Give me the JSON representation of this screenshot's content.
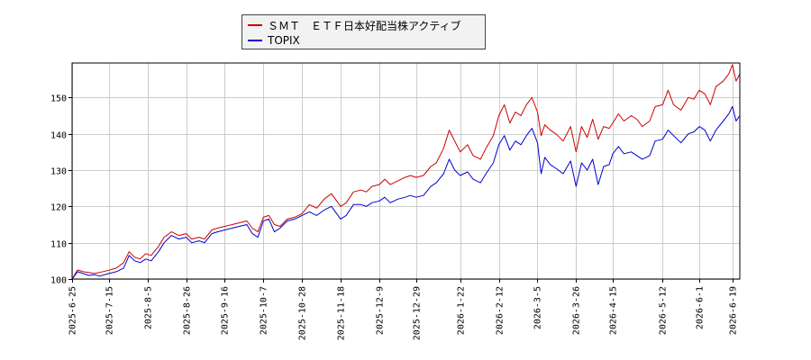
{
  "chart_data": {
    "type": "line",
    "title": "",
    "xlabel": "",
    "ylabel": "",
    "ylim": [
      100,
      159.5
    ],
    "yticks": [
      100,
      110,
      120,
      130,
      140,
      150
    ],
    "xlim": [
      "2025-06-25",
      "2026-06-23"
    ],
    "xticks": [
      "2025-6-25",
      "2025-7-15",
      "2025-8-5",
      "2025-8-26",
      "2025-9-16",
      "2025-10-7",
      "2025-10-28",
      "2025-11-18",
      "2025-12-9",
      "2025-12-29",
      "2026-1-22",
      "2026-2-12",
      "2026-3-5",
      "2026-3-26",
      "2026-4-15",
      "2026-5-12",
      "2026-6-1",
      "2026-6-19"
    ],
    "grid": true,
    "legend_position": "top",
    "series": [
      {
        "name": "ＳＭＴ　ＥＴＦ日本好配当株アクティブ",
        "color": "#cc0000",
        "points": [
          [
            "2025-06-25",
            100.0
          ],
          [
            "2025-06-28",
            102.5
          ],
          [
            "2025-07-01",
            102.0
          ],
          [
            "2025-07-04",
            101.8
          ],
          [
            "2025-07-07",
            101.5
          ],
          [
            "2025-07-10",
            101.8
          ],
          [
            "2025-07-15",
            102.4
          ],
          [
            "2025-07-19",
            103.0
          ],
          [
            "2025-07-23",
            104.5
          ],
          [
            "2025-07-26",
            107.5
          ],
          [
            "2025-07-29",
            106.0
          ],
          [
            "2025-08-01",
            105.5
          ],
          [
            "2025-08-04",
            107.0
          ],
          [
            "2025-08-07",
            106.5
          ],
          [
            "2025-08-11",
            109.0
          ],
          [
            "2025-08-14",
            111.5
          ],
          [
            "2025-08-18",
            113.0
          ],
          [
            "2025-08-22",
            112.0
          ],
          [
            "2025-08-26",
            112.5
          ],
          [
            "2025-08-29",
            111.0
          ],
          [
            "2025-09-02",
            111.5
          ],
          [
            "2025-09-05",
            111.0
          ],
          [
            "2025-09-09",
            113.5
          ],
          [
            "2025-09-12",
            114.0
          ],
          [
            "2025-09-16",
            114.5
          ],
          [
            "2025-09-20",
            115.0
          ],
          [
            "2025-09-24",
            115.5
          ],
          [
            "2025-09-28",
            116.0
          ],
          [
            "2025-10-01",
            114.0
          ],
          [
            "2025-10-04",
            113.0
          ],
          [
            "2025-10-07",
            117.0
          ],
          [
            "2025-10-10",
            117.5
          ],
          [
            "2025-10-13",
            115.0
          ],
          [
            "2025-10-16",
            114.5
          ],
          [
            "2025-10-20",
            116.5
          ],
          [
            "2025-10-24",
            117.0
          ],
          [
            "2025-10-28",
            118.0
          ],
          [
            "2025-11-01",
            120.5
          ],
          [
            "2025-11-05",
            119.5
          ],
          [
            "2025-11-09",
            122.0
          ],
          [
            "2025-11-13",
            123.5
          ],
          [
            "2025-11-18",
            120.0
          ],
          [
            "2025-11-21",
            121.0
          ],
          [
            "2025-11-25",
            124.0
          ],
          [
            "2025-11-29",
            124.5
          ],
          [
            "2025-12-02",
            124.0
          ],
          [
            "2025-12-05",
            125.5
          ],
          [
            "2025-12-09",
            126.0
          ],
          [
            "2025-12-12",
            127.5
          ],
          [
            "2025-12-15",
            126.0
          ],
          [
            "2025-12-19",
            127.0
          ],
          [
            "2025-12-23",
            128.0
          ],
          [
            "2025-12-26",
            128.5
          ],
          [
            "2025-12-29",
            128.0
          ],
          [
            "2026-01-02",
            128.5
          ],
          [
            "2026-01-06",
            131.0
          ],
          [
            "2026-01-09",
            132.0
          ],
          [
            "2026-01-13",
            136.0
          ],
          [
            "2026-01-16",
            141.0
          ],
          [
            "2026-01-19",
            138.0
          ],
          [
            "2026-01-22",
            135.0
          ],
          [
            "2026-01-26",
            137.0
          ],
          [
            "2026-01-29",
            134.0
          ],
          [
            "2026-02-02",
            133.0
          ],
          [
            "2026-02-05",
            136.0
          ],
          [
            "2026-02-09",
            139.5
          ],
          [
            "2026-02-12",
            145.0
          ],
          [
            "2026-02-15",
            148.0
          ],
          [
            "2026-02-18",
            143.0
          ],
          [
            "2026-02-21",
            146.0
          ],
          [
            "2026-02-24",
            145.0
          ],
          [
            "2026-02-27",
            148.0
          ],
          [
            "2026-03-02",
            150.0
          ],
          [
            "2026-03-05",
            146.0
          ],
          [
            "2026-03-07",
            139.5
          ],
          [
            "2026-03-09",
            142.5
          ],
          [
            "2026-03-12",
            141.0
          ],
          [
            "2026-03-15",
            140.0
          ],
          [
            "2026-03-19",
            138.0
          ],
          [
            "2026-03-23",
            142.0
          ],
          [
            "2026-03-26",
            135.0
          ],
          [
            "2026-03-29",
            142.0
          ],
          [
            "2026-04-01",
            139.0
          ],
          [
            "2026-04-04",
            144.0
          ],
          [
            "2026-04-07",
            138.5
          ],
          [
            "2026-04-10",
            142.0
          ],
          [
            "2026-04-13",
            141.5
          ],
          [
            "2026-04-15",
            143.0
          ],
          [
            "2026-04-18",
            145.5
          ],
          [
            "2026-04-21",
            143.5
          ],
          [
            "2026-04-25",
            145.0
          ],
          [
            "2026-04-28",
            144.0
          ],
          [
            "2026-05-01",
            142.0
          ],
          [
            "2026-05-05",
            143.5
          ],
          [
            "2026-05-08",
            147.5
          ],
          [
            "2026-05-12",
            148.0
          ],
          [
            "2026-05-15",
            152.0
          ],
          [
            "2026-05-18",
            148.0
          ],
          [
            "2026-05-22",
            146.5
          ],
          [
            "2026-05-26",
            150.0
          ],
          [
            "2026-05-29",
            149.5
          ],
          [
            "2026-06-01",
            152.0
          ],
          [
            "2026-06-04",
            151.0
          ],
          [
            "2026-06-07",
            148.0
          ],
          [
            "2026-06-10",
            153.0
          ],
          [
            "2026-06-14",
            154.5
          ],
          [
            "2026-06-17",
            156.5
          ],
          [
            "2026-06-19",
            159.0
          ],
          [
            "2026-06-21",
            154.5
          ],
          [
            "2026-06-23",
            156.5
          ]
        ]
      },
      {
        "name": "TOPIX",
        "color": "#0000cc",
        "points": [
          [
            "2025-06-25",
            100.0
          ],
          [
            "2025-06-28",
            102.0
          ],
          [
            "2025-07-01",
            101.5
          ],
          [
            "2025-07-04",
            101.0
          ],
          [
            "2025-07-07",
            101.2
          ],
          [
            "2025-07-10",
            100.8
          ],
          [
            "2025-07-15",
            101.5
          ],
          [
            "2025-07-19",
            102.0
          ],
          [
            "2025-07-23",
            103.0
          ],
          [
            "2025-07-26",
            106.5
          ],
          [
            "2025-07-29",
            105.0
          ],
          [
            "2025-08-01",
            104.5
          ],
          [
            "2025-08-04",
            105.5
          ],
          [
            "2025-08-07",
            105.0
          ],
          [
            "2025-08-11",
            107.5
          ],
          [
            "2025-08-14",
            110.0
          ],
          [
            "2025-08-18",
            112.0
          ],
          [
            "2025-08-22",
            111.0
          ],
          [
            "2025-08-26",
            111.5
          ],
          [
            "2025-08-29",
            110.0
          ],
          [
            "2025-09-02",
            110.5
          ],
          [
            "2025-09-05",
            110.0
          ],
          [
            "2025-09-09",
            112.5
          ],
          [
            "2025-09-12",
            113.0
          ],
          [
            "2025-09-16",
            113.5
          ],
          [
            "2025-09-20",
            114.0
          ],
          [
            "2025-09-24",
            114.5
          ],
          [
            "2025-09-28",
            115.0
          ],
          [
            "2025-10-01",
            112.5
          ],
          [
            "2025-10-04",
            111.5
          ],
          [
            "2025-10-07",
            116.0
          ],
          [
            "2025-10-10",
            116.5
          ],
          [
            "2025-10-13",
            113.0
          ],
          [
            "2025-10-16",
            114.0
          ],
          [
            "2025-10-20",
            116.0
          ],
          [
            "2025-10-24",
            116.5
          ],
          [
            "2025-10-28",
            117.5
          ],
          [
            "2025-11-01",
            118.5
          ],
          [
            "2025-11-05",
            117.5
          ],
          [
            "2025-11-09",
            119.0
          ],
          [
            "2025-11-13",
            120.0
          ],
          [
            "2025-11-18",
            116.5
          ],
          [
            "2025-11-21",
            117.5
          ],
          [
            "2025-11-25",
            120.5
          ],
          [
            "2025-11-29",
            120.5
          ],
          [
            "2025-12-02",
            120.0
          ],
          [
            "2025-12-05",
            121.0
          ],
          [
            "2025-12-09",
            121.5
          ],
          [
            "2025-12-12",
            122.5
          ],
          [
            "2025-12-15",
            121.0
          ],
          [
            "2025-12-19",
            122.0
          ],
          [
            "2025-12-23",
            122.5
          ],
          [
            "2025-12-26",
            123.0
          ],
          [
            "2025-12-29",
            122.5
          ],
          [
            "2026-01-02",
            123.0
          ],
          [
            "2026-01-06",
            125.5
          ],
          [
            "2026-01-09",
            126.5
          ],
          [
            "2026-01-13",
            129.0
          ],
          [
            "2026-01-16",
            133.0
          ],
          [
            "2026-01-19",
            130.0
          ],
          [
            "2026-01-22",
            128.5
          ],
          [
            "2026-01-26",
            129.5
          ],
          [
            "2026-01-29",
            127.5
          ],
          [
            "2026-02-02",
            126.5
          ],
          [
            "2026-02-05",
            129.0
          ],
          [
            "2026-02-09",
            132.0
          ],
          [
            "2026-02-12",
            137.0
          ],
          [
            "2026-02-15",
            139.5
          ],
          [
            "2026-02-18",
            135.5
          ],
          [
            "2026-02-21",
            138.0
          ],
          [
            "2026-02-24",
            137.0
          ],
          [
            "2026-02-27",
            139.5
          ],
          [
            "2026-03-02",
            141.5
          ],
          [
            "2026-03-05",
            137.5
          ],
          [
            "2026-03-07",
            129.0
          ],
          [
            "2026-03-09",
            133.5
          ],
          [
            "2026-03-12",
            131.5
          ],
          [
            "2026-03-15",
            130.5
          ],
          [
            "2026-03-19",
            129.0
          ],
          [
            "2026-03-23",
            132.5
          ],
          [
            "2026-03-26",
            125.5
          ],
          [
            "2026-03-29",
            132.0
          ],
          [
            "2026-04-01",
            130.0
          ],
          [
            "2026-04-04",
            133.0
          ],
          [
            "2026-04-07",
            126.0
          ],
          [
            "2026-04-10",
            131.0
          ],
          [
            "2026-04-13",
            131.5
          ],
          [
            "2026-04-15",
            134.5
          ],
          [
            "2026-04-18",
            136.5
          ],
          [
            "2026-04-21",
            134.5
          ],
          [
            "2026-04-25",
            135.0
          ],
          [
            "2026-04-28",
            134.0
          ],
          [
            "2026-05-01",
            133.0
          ],
          [
            "2026-05-05",
            134.0
          ],
          [
            "2026-05-08",
            138.0
          ],
          [
            "2026-05-12",
            138.5
          ],
          [
            "2026-05-15",
            141.0
          ],
          [
            "2026-05-18",
            139.5
          ],
          [
            "2026-05-22",
            137.5
          ],
          [
            "2026-05-26",
            140.0
          ],
          [
            "2026-05-29",
            140.5
          ],
          [
            "2026-06-01",
            142.0
          ],
          [
            "2026-06-04",
            141.0
          ],
          [
            "2026-06-07",
            138.0
          ],
          [
            "2026-06-10",
            141.0
          ],
          [
            "2026-06-14",
            143.5
          ],
          [
            "2026-06-17",
            145.5
          ],
          [
            "2026-06-19",
            147.5
          ],
          [
            "2026-06-21",
            143.5
          ],
          [
            "2026-06-23",
            145.0
          ]
        ]
      }
    ]
  }
}
